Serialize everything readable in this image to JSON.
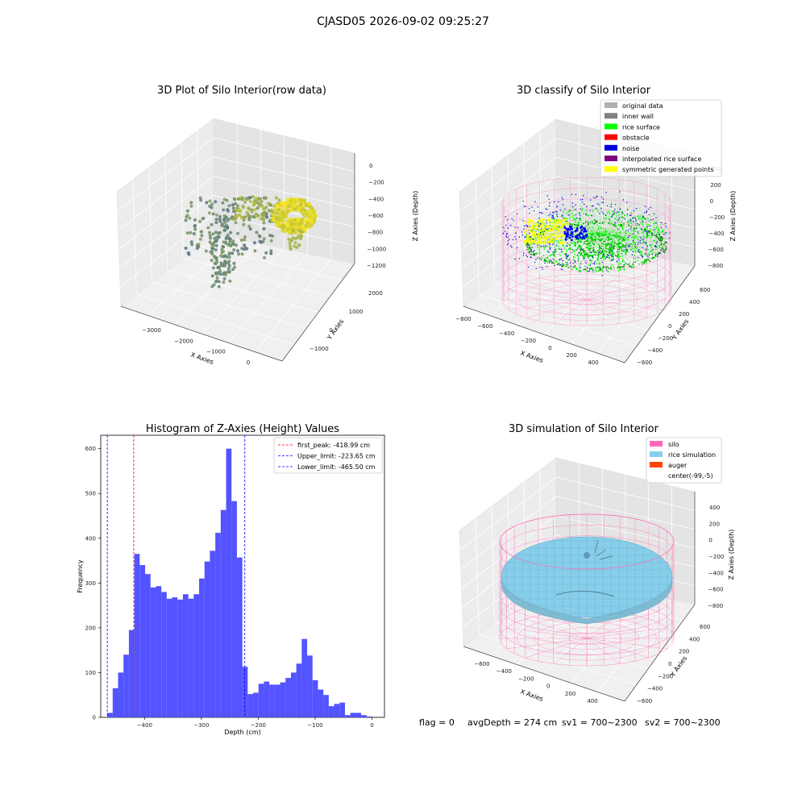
{
  "suptitle": "CJASD05 2026-09-02 09:25:27",
  "footer": {
    "flag": "flag = 0",
    "avgdepth": "avgDepth = 274 cm",
    "sv1": "sv1 = 700~2300",
    "sv2": "sv2 = 700~2300"
  },
  "colors": {
    "rice_surface": "#00ff00",
    "obstacle": "#ff0000",
    "noise": "#0000dd",
    "interpolated": "#800080",
    "symmetric": "#ffff00",
    "silo": "#ff69b4",
    "rice_sim": "#87ceeb",
    "auger": "#ff4500",
    "hist_bar": "#4a4aff"
  },
  "chart_data": [
    {
      "type": "scatter3d",
      "title": "3D Plot of Silo Interior(row data)",
      "xlabel": "X Axies",
      "ylabel": "Y Axies",
      "zlabel": "Z Axies (Depth)",
      "xticks": [
        "−3000",
        "−2000",
        "−1000",
        "0"
      ],
      "yticks": [
        "−1000",
        "0",
        "1000",
        "2000"
      ],
      "zticks": [
        "−1200",
        "−1000",
        "−800",
        "−600",
        "−400",
        "−200",
        "0"
      ]
    },
    {
      "type": "scatter3d",
      "title": "3D classify of Silo Interior",
      "xlabel": "X Axies",
      "ylabel": "Y Axies",
      "zlabel": "Z Axies (Depth)",
      "xticks": [
        "−800",
        "−600",
        "−400",
        "−200",
        "0",
        "200",
        "400"
      ],
      "yticks": [
        "−600",
        "−400",
        "−200",
        "0",
        "200",
        "400",
        "600"
      ],
      "zticks": [
        "−800",
        "−600",
        "−400",
        "−200",
        "0",
        "200",
        "400"
      ],
      "legend": [
        {
          "label": "original data",
          "color": "#b0b0b0"
        },
        {
          "label": "inner wall",
          "color": "#808080"
        },
        {
          "label": "rice surface",
          "color": "#00ff00"
        },
        {
          "label": "obstacle",
          "color": "#ff0000"
        },
        {
          "label": "noise",
          "color": "#0000dd"
        },
        {
          "label": "interpolated rice surface",
          "color": "#800080"
        },
        {
          "label": "symmetric generated points",
          "color": "#ffff00"
        }
      ],
      "legend_loc": "top-right"
    },
    {
      "type": "bar",
      "title": "Histogram of Z-Axies (Height) Values",
      "xlabel": "Depth (cm)",
      "ylabel": "Frequency",
      "xlim": [
        -477,
        22
      ],
      "ylim": [
        0,
        630
      ],
      "xticks": [
        -400,
        -300,
        -200,
        -100,
        0
      ],
      "yticks": [
        0,
        100,
        200,
        300,
        400,
        500,
        600
      ],
      "bin_start": -465.5,
      "bin_width": 9.5,
      "values": [
        10,
        65,
        100,
        140,
        195,
        365,
        340,
        320,
        290,
        293,
        280,
        265,
        268,
        263,
        275,
        265,
        275,
        310,
        348,
        372,
        412,
        463,
        600,
        483,
        357,
        113,
        52,
        55,
        75,
        80,
        73,
        73,
        78,
        88,
        100,
        120,
        175,
        138,
        83,
        62,
        50,
        25,
        30,
        33,
        5,
        10,
        10,
        5,
        2
      ],
      "vlines": [
        {
          "label": "first_peak: -418.99 cm",
          "x": -418.99,
          "color": "#ff0000"
        },
        {
          "label": "Upper_limit: -223.65 cm",
          "x": -223.65,
          "color": "#0000ff"
        },
        {
          "label": "Lower_limit: -465.50 cm",
          "x": -465.5,
          "color": "#0000ff"
        }
      ],
      "legend_loc": "top-right"
    },
    {
      "type": "surface3d",
      "title": "3D simulation of Silo Interior",
      "xlabel": "X Axies",
      "ylabel": "Y Axies",
      "zlabel": "Z Axies (Depth)",
      "xticks": [
        "−600",
        "−400",
        "−200",
        "0",
        "200",
        "400"
      ],
      "yticks": [
        "−600",
        "−400",
        "−200",
        "0",
        "200",
        "400",
        "600"
      ],
      "zticks": [
        "−800",
        "−600",
        "−400",
        "−200",
        "0",
        "200",
        "400"
      ],
      "legend": [
        {
          "label": "silo",
          "color": "#ff69b4"
        },
        {
          "label": "rice simulation",
          "color": "#87ceeb"
        },
        {
          "label": "auger",
          "color": "#ff4500"
        },
        {
          "label": "center(-99,-5)",
          "color": ""
        }
      ],
      "legend_loc": "top-right"
    }
  ]
}
